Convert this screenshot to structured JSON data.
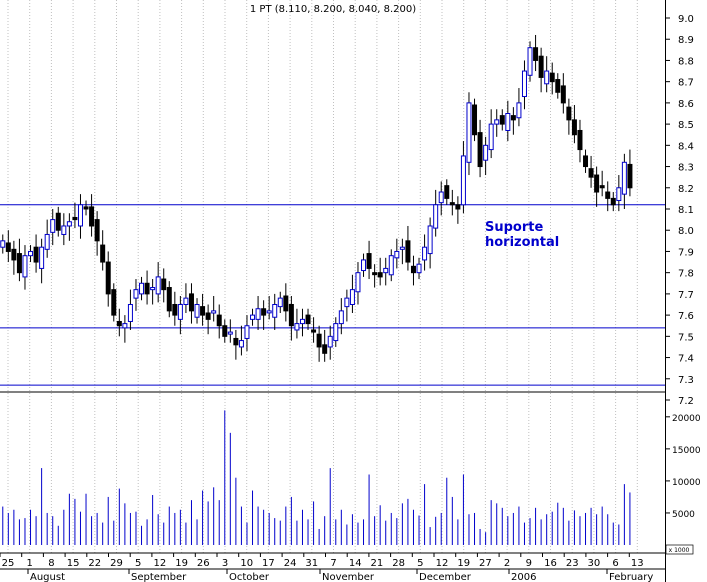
{
  "header": {
    "text": "1 PT (8.110, 8.200, 8.040, 8.200)"
  },
  "annotation": {
    "line1": "Suporte",
    "line2": "horizontal"
  },
  "volume_unit": "x 1000",
  "colors": {
    "up": "#0000cc",
    "down": "#000000",
    "support": "#0000cc",
    "grid": "#c0c0c0",
    "volume": "#0000cc",
    "annotation": "#0000cc"
  },
  "chart_data": {
    "type": "candlestick",
    "price_axis": {
      "min": 7.2,
      "max": 9.0,
      "ticks": [
        "9.0",
        "8.9",
        "8.8",
        "8.7",
        "8.6",
        "8.5",
        "8.4",
        "8.3",
        "8.2",
        "8.1",
        "8.0",
        "7.9",
        "7.8",
        "7.7",
        "7.6",
        "7.5",
        "7.4",
        "7.3",
        "7.2"
      ]
    },
    "volume_axis": {
      "min": 0,
      "max": 22000,
      "ticks": [
        "20000",
        "15000",
        "10000",
        "5000"
      ]
    },
    "support_levels": [
      8.12,
      7.54,
      7.27
    ],
    "x_day_labels": [
      "25",
      "1",
      "8",
      "15",
      "22",
      "29",
      "5",
      "12",
      "19",
      "26",
      "3",
      "10",
      "17",
      "24",
      "31",
      "7",
      "14",
      "21",
      "28",
      "5",
      "12",
      "19",
      "27",
      "2",
      "9",
      "16",
      "23",
      "30",
      "6",
      "13"
    ],
    "x_month_labels": [
      "August",
      "September",
      "October",
      "November",
      "December",
      "2006",
      "February"
    ],
    "series": [
      {
        "x": 1,
        "close": 7.95
      },
      {
        "x": 2,
        "close": 7.9
      },
      {
        "x": 3,
        "close": 7.86
      },
      {
        "x": 4,
        "close": 7.8
      },
      {
        "x": 5,
        "close": 7.88
      },
      {
        "x": 6,
        "close": 7.9
      },
      {
        "x": 7,
        "close": 7.85
      },
      {
        "x": 8,
        "close": 7.92
      },
      {
        "x": 9,
        "close": 7.98
      },
      {
        "x": 10,
        "close": 8.05
      },
      {
        "x": 11,
        "close": 8.0
      },
      {
        "x": 12,
        "close": 8.02
      },
      {
        "x": 13,
        "close": 8.04
      },
      {
        "x": 14,
        "close": 8.05
      },
      {
        "x": 15,
        "close": 8.12
      },
      {
        "x": 16,
        "close": 8.1
      },
      {
        "x": 17,
        "close": 8.02
      },
      {
        "x": 18,
        "close": 7.95
      },
      {
        "x": 19,
        "close": 7.85
      },
      {
        "x": 20,
        "close": 7.7
      },
      {
        "x": 21,
        "close": 7.6
      },
      {
        "x": 22,
        "close": 7.55
      },
      {
        "x": 23,
        "close": 7.56
      },
      {
        "x": 24,
        "close": 7.65
      },
      {
        "x": 25,
        "close": 7.72
      },
      {
        "x": 26,
        "close": 7.75
      },
      {
        "x": 27,
        "close": 7.7
      },
      {
        "x": 28,
        "close": 7.73
      },
      {
        "x": 29,
        "close": 7.78
      },
      {
        "x": 30,
        "close": 7.72
      },
      {
        "x": 31,
        "close": 7.62
      },
      {
        "x": 32,
        "close": 7.6
      },
      {
        "x": 33,
        "close": 7.65
      },
      {
        "x": 34,
        "close": 7.68
      },
      {
        "x": 35,
        "close": 7.62
      },
      {
        "x": 36,
        "close": 7.65
      },
      {
        "x": 37,
        "close": 7.6
      },
      {
        "x": 38,
        "close": 7.58
      },
      {
        "x": 39,
        "close": 7.62
      },
      {
        "x": 40,
        "close": 7.55
      },
      {
        "x": 41,
        "close": 7.5
      },
      {
        "x": 42,
        "close": 7.52
      },
      {
        "x": 43,
        "close": 7.46
      },
      {
        "x": 44,
        "close": 7.48
      },
      {
        "x": 45,
        "close": 7.55
      },
      {
        "x": 46,
        "close": 7.6
      },
      {
        "x": 47,
        "close": 7.63
      },
      {
        "x": 48,
        "close": 7.6
      },
      {
        "x": 49,
        "close": 7.62
      },
      {
        "x": 50,
        "close": 7.65
      },
      {
        "x": 51,
        "close": 7.68
      },
      {
        "x": 52,
        "close": 7.62
      },
      {
        "x": 53,
        "close": 7.55
      },
      {
        "x": 54,
        "close": 7.56
      },
      {
        "x": 55,
        "close": 7.58
      },
      {
        "x": 56,
        "close": 7.56
      },
      {
        "x": 57,
        "close": 7.52
      },
      {
        "x": 58,
        "close": 7.45
      },
      {
        "x": 59,
        "close": 7.42
      },
      {
        "x": 60,
        "close": 7.5
      },
      {
        "x": 61,
        "close": 7.56
      },
      {
        "x": 62,
        "close": 7.62
      },
      {
        "x": 63,
        "close": 7.68
      },
      {
        "x": 64,
        "close": 7.72
      },
      {
        "x": 65,
        "close": 7.8
      },
      {
        "x": 66,
        "close": 7.86
      },
      {
        "x": 67,
        "close": 7.82
      },
      {
        "x": 68,
        "close": 7.8
      },
      {
        "x": 69,
        "close": 7.78
      },
      {
        "x": 70,
        "close": 7.82
      },
      {
        "x": 71,
        "close": 7.88
      },
      {
        "x": 72,
        "close": 7.9
      },
      {
        "x": 73,
        "close": 7.92
      },
      {
        "x": 74,
        "close": 7.85
      },
      {
        "x": 75,
        "close": 7.8
      },
      {
        "x": 76,
        "close": 7.84
      },
      {
        "x": 77,
        "close": 7.92
      },
      {
        "x": 78,
        "close": 8.02
      },
      {
        "x": 79,
        "close": 8.12
      },
      {
        "x": 80,
        "close": 8.18
      },
      {
        "x": 81,
        "close": 8.15
      },
      {
        "x": 82,
        "close": 8.12
      },
      {
        "x": 83,
        "close": 8.1
      },
      {
        "x": 84,
        "close": 8.35
      },
      {
        "x": 85,
        "close": 8.6
      },
      {
        "x": 86,
        "close": 8.45
      },
      {
        "x": 87,
        "close": 8.3
      },
      {
        "x": 88,
        "close": 8.4
      },
      {
        "x": 89,
        "close": 8.5
      },
      {
        "x": 90,
        "close": 8.52
      },
      {
        "x": 91,
        "close": 8.5
      },
      {
        "x": 92,
        "close": 8.55
      },
      {
        "x": 93,
        "close": 8.52
      },
      {
        "x": 94,
        "close": 8.6
      },
      {
        "x": 95,
        "close": 8.75
      },
      {
        "x": 96,
        "close": 8.86
      },
      {
        "x": 97,
        "close": 8.8
      },
      {
        "x": 98,
        "close": 8.72
      },
      {
        "x": 99,
        "close": 8.75
      },
      {
        "x": 100,
        "close": 8.7
      },
      {
        "x": 101,
        "close": 8.65
      },
      {
        "x": 102,
        "close": 8.6
      },
      {
        "x": 103,
        "close": 8.52
      },
      {
        "x": 104,
        "close": 8.45
      },
      {
        "x": 105,
        "close": 8.38
      },
      {
        "x": 106,
        "close": 8.3
      },
      {
        "x": 107,
        "close": 8.25
      },
      {
        "x": 108,
        "close": 8.18
      },
      {
        "x": 109,
        "close": 8.2
      },
      {
        "x": 110,
        "close": 8.15
      },
      {
        "x": 111,
        "close": 8.12
      },
      {
        "x": 112,
        "close": 8.2
      },
      {
        "x": 113,
        "close": 8.32
      },
      {
        "x": 114,
        "close": 8.2
      }
    ],
    "volume": [
      6000,
      5000,
      5500,
      4000,
      4200,
      5500,
      4500,
      12000,
      5000,
      4500,
      3000,
      5500,
      8000,
      7200,
      5200,
      8000,
      4500,
      5000,
      3500,
      7500,
      3800,
      8800,
      6500,
      5000,
      5200,
      3000,
      4000,
      7800,
      4800,
      3500,
      6000,
      5000,
      5500,
      3500,
      7000,
      4000,
      8500,
      6800,
      9000,
      7000,
      21000,
      17500,
      10500,
      6000,
      3500,
      8500,
      6000,
      5500,
      5000,
      4200,
      3800,
      6000,
      7500,
      3800,
      5500,
      4000,
      6800,
      2500,
      4500,
      12000,
      4000,
      5500,
      3200,
      4800,
      3500,
      4000,
      11000,
      4500,
      6200,
      3800,
      5000,
      4200,
      6500,
      7200,
      5500,
      4600,
      9500,
      2800,
      4400,
      5000,
      10500,
      7500,
      4000,
      11000,
      4800,
      5000,
      2500,
      2000,
      7000,
      6500,
      5800,
      4500,
      5000,
      6000,
      3500,
      4200,
      5800,
      4000,
      4800,
      5200,
      6600,
      5800,
      3800,
      5400,
      4500,
      5000,
      5800,
      4800,
      6000,
      4800,
      3500,
      3200,
      9500,
      8200
    ]
  }
}
